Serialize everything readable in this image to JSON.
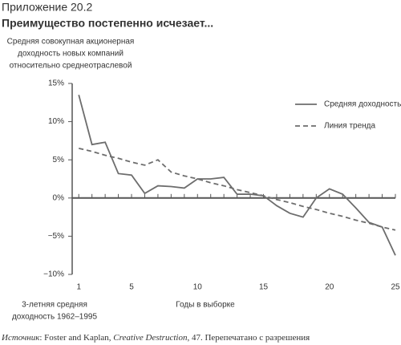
{
  "chart_data": {
    "type": "line",
    "title": "Приложение 20.2",
    "subtitle": "Преимущество постепенно исчезает...",
    "y_label": [
      "Средняя совокупная акционерная",
      "доходность новых компаний",
      "относительно среднеотраслевой"
    ],
    "x_label": "Годы в выборке",
    "x_note": [
      "3-летняя средняя",
      "доходность 1962–1995"
    ],
    "source": [
      "Источник",
      ": Foster and Kaplan, ",
      "Creative Destruction",
      ", 47. Перепечатано с разрешения"
    ],
    "x": [
      1,
      2,
      3,
      4,
      5,
      6,
      7,
      8,
      9,
      10,
      11,
      12,
      13,
      14,
      15,
      16,
      17,
      18,
      19,
      20,
      21,
      22,
      23,
      24,
      25
    ],
    "series": [
      {
        "name": "Средняя доходность",
        "color": "#6d6d6d",
        "dash": false,
        "values": [
          13.5,
          7.0,
          7.3,
          3.2,
          3.0,
          0.6,
          1.6,
          1.5,
          1.3,
          2.5,
          2.5,
          2.7,
          0.5,
          0.5,
          0.3,
          -1.0,
          -2.0,
          -2.5,
          0.0,
          1.2,
          0.5,
          -1.3,
          -3.2,
          -3.8,
          -7.5
        ]
      },
      {
        "name": "Линия тренда",
        "color": "#6d6d6d",
        "dash": true,
        "values": [
          6.5,
          6.1,
          5.6,
          5.2,
          4.7,
          4.3,
          5.0,
          3.4,
          2.9,
          2.5,
          2.0,
          1.6,
          1.1,
          0.7,
          0.3,
          -0.2,
          -0.6,
          -1.1,
          -1.5,
          -2.0,
          -2.4,
          -2.9,
          -3.3,
          -3.8,
          -4.2
        ]
      }
    ],
    "xlim": [
      0.5,
      25
    ],
    "xticks": [
      1,
      5,
      10,
      15,
      20,
      25
    ],
    "ylim": [
      -10,
      15
    ],
    "yticks": [
      {
        "value": 15,
        "label": "15%"
      },
      {
        "value": 10,
        "label": "10%"
      },
      {
        "value": 5,
        "label": "5%"
      },
      {
        "value": 0,
        "label": "0%"
      },
      {
        "value": -5,
        "label": "−5%"
      },
      {
        "value": -10,
        "label": "−10%"
      }
    ],
    "legend": "top-right"
  }
}
